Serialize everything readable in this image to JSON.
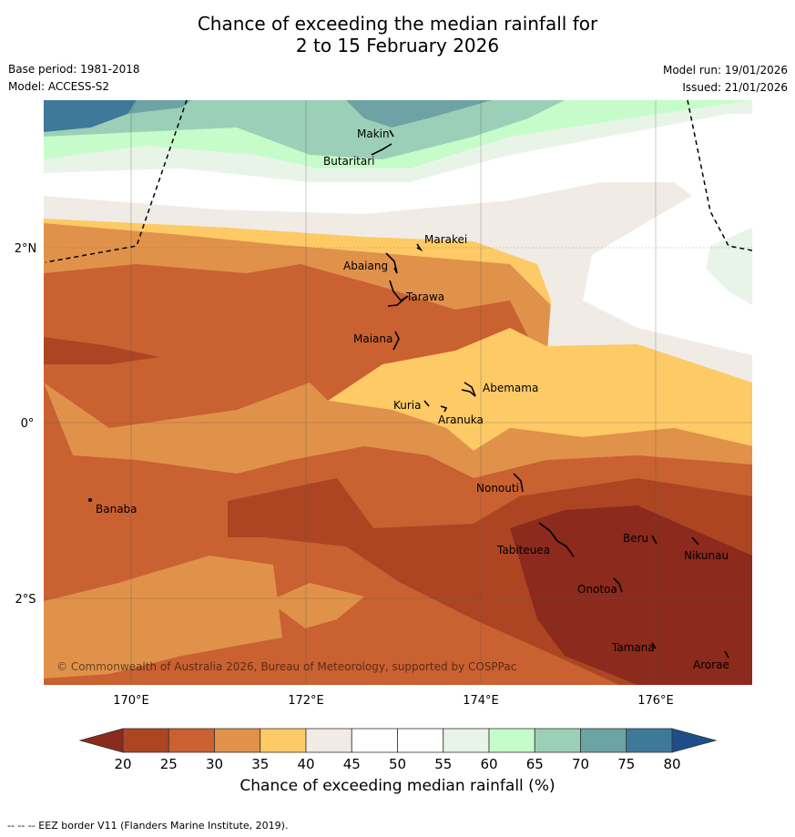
{
  "title_line1": "Chance of exceeding the median rainfall for",
  "title_line2": "2 to 15 February 2026",
  "base_period": "Base period: 1981-2018",
  "model": "Model: ACCESS-S2",
  "model_run": "Model run: 19/01/2026",
  "issued": "Issued: 21/01/2026",
  "copyright": "© Commonwealth of Australia 2026, Bureau of Meteorology, supported by COSPPac",
  "lat_labels": [
    "2°N",
    "0°",
    "2°S"
  ],
  "lon_labels": [
    "170°E",
    "172°E",
    "174°E",
    "176°E"
  ],
  "places": [
    "Makin",
    "Butaritari",
    "Marakei",
    "Abaiang",
    "Tarawa",
    "Maiana",
    "Abemama",
    "Kuria",
    "Aranuka",
    "Banaba",
    "Nonouti",
    "Tabiteuea",
    "Beru",
    "Nikunau",
    "Onotoa",
    "Tamana",
    "Arorae"
  ],
  "colorbar": {
    "ticks": [
      "20",
      "25",
      "30",
      "35",
      "40",
      "45",
      "50",
      "55",
      "60",
      "65",
      "70",
      "75",
      "80"
    ],
    "colors": [
      "#ad4523",
      "#c96131",
      "#e0924a",
      "#fdca66",
      "#f0ebe5",
      "#ffffff",
      "#ffffff",
      "#e9f4e9",
      "#c6fcc9",
      "#9ccfb8",
      "#6da3a4",
      "#3f7999"
    ],
    "under_color": "#8b2a1d",
    "over_color": "#1d4e8a",
    "label": "Chance of exceeding median rainfall (%)"
  },
  "footer": "--  --  -- EEZ border V11 (Flanders Marine Institute, 2019)."
}
